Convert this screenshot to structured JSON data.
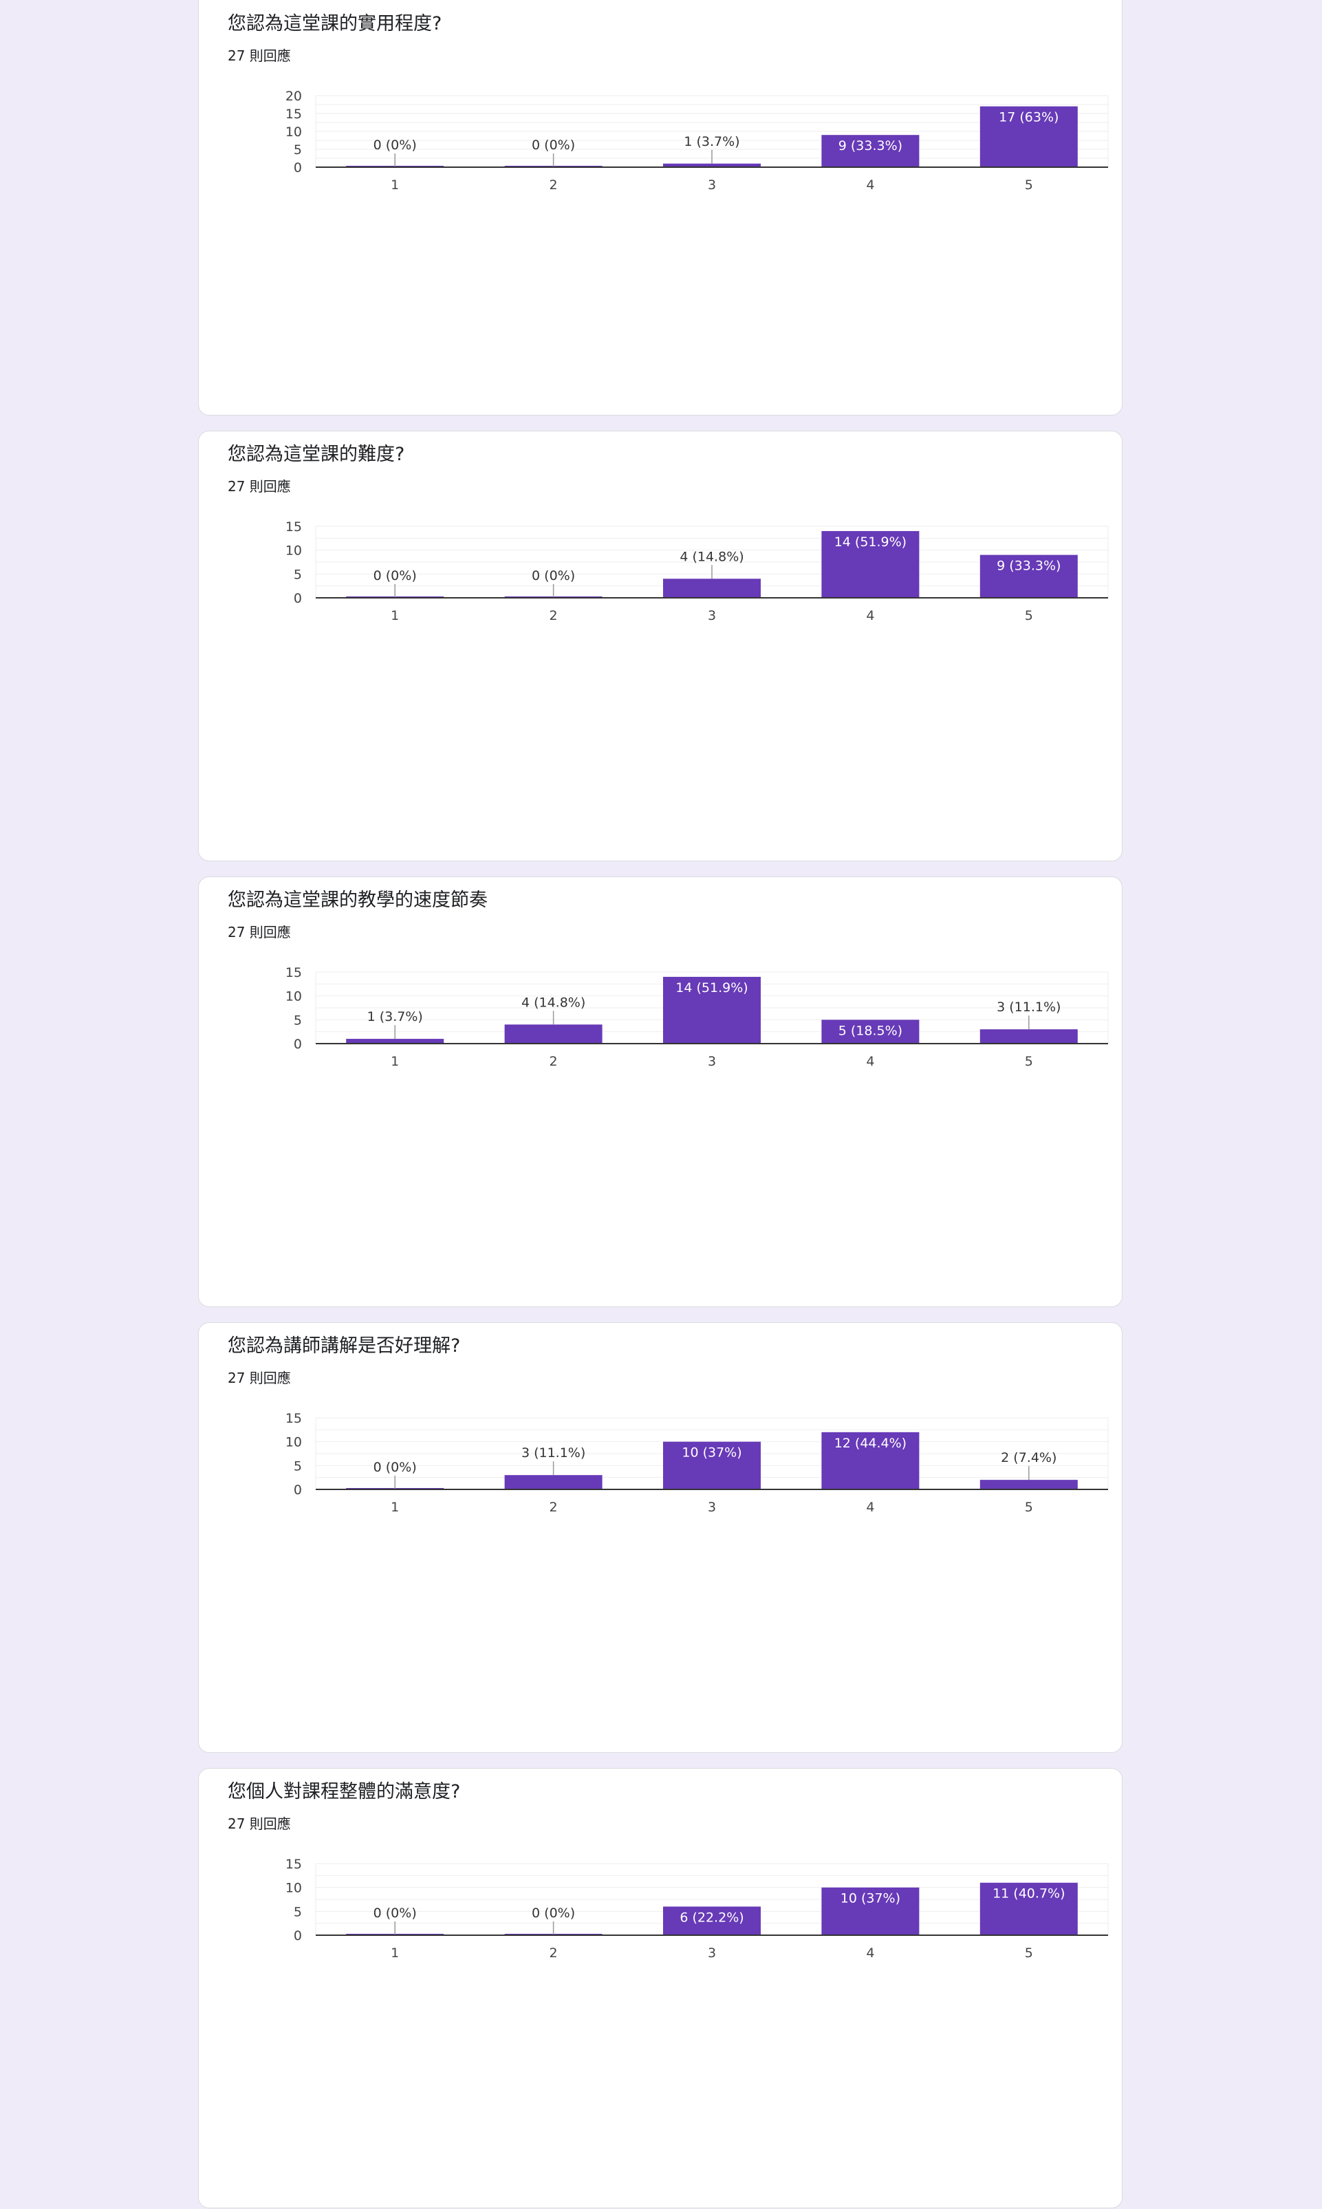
{
  "colors": {
    "bar": "#673ab7",
    "background": "#efebf8",
    "gridline": "#eeeeee",
    "axis": "#333333"
  },
  "chart_data": [
    {
      "type": "bar",
      "title": "您認為這堂課的實用程度?",
      "subtitle": "27 則回應",
      "categories": [
        "1",
        "2",
        "3",
        "4",
        "5"
      ],
      "values": [
        0,
        0,
        1,
        9,
        17
      ],
      "data_labels": [
        "0 (0%)",
        "0 (0%)",
        "1 (3.7%)",
        "9 (33.3%)",
        "17 (63%)"
      ],
      "ylim": [
        0,
        20
      ],
      "yticks": [
        0,
        5,
        10,
        15,
        20
      ],
      "grid": true
    },
    {
      "type": "bar",
      "title": "您認為這堂課的難度?",
      "subtitle": "27 則回應",
      "categories": [
        "1",
        "2",
        "3",
        "4",
        "5"
      ],
      "values": [
        0,
        0,
        4,
        14,
        9
      ],
      "data_labels": [
        "0 (0%)",
        "0 (0%)",
        "4 (14.8%)",
        "14 (51.9%)",
        "9 (33.3%)"
      ],
      "ylim": [
        0,
        15
      ],
      "yticks": [
        0,
        5,
        10,
        15
      ],
      "grid": true
    },
    {
      "type": "bar",
      "title": "您認為這堂課的教學的速度節奏",
      "subtitle": "27 則回應",
      "categories": [
        "1",
        "2",
        "3",
        "4",
        "5"
      ],
      "values": [
        1,
        4,
        14,
        5,
        3
      ],
      "data_labels": [
        "1 (3.7%)",
        "4 (14.8%)",
        "14 (51.9%)",
        "5 (18.5%)",
        "3 (11.1%)"
      ],
      "ylim": [
        0,
        15
      ],
      "yticks": [
        0,
        5,
        10,
        15
      ],
      "grid": true
    },
    {
      "type": "bar",
      "title": "您認為講師講解是否好理解?",
      "subtitle": "27 則回應",
      "categories": [
        "1",
        "2",
        "3",
        "4",
        "5"
      ],
      "values": [
        0,
        3,
        10,
        12,
        2
      ],
      "data_labels": [
        "0 (0%)",
        "3 (11.1%)",
        "10 (37%)",
        "12 (44.4%)",
        "2 (7.4%)"
      ],
      "ylim": [
        0,
        15
      ],
      "yticks": [
        0,
        5,
        10,
        15
      ],
      "grid": true
    },
    {
      "type": "bar",
      "title": "您個人對課程整體的滿意度?",
      "subtitle": "27 則回應",
      "categories": [
        "1",
        "2",
        "3",
        "4",
        "5"
      ],
      "values": [
        0,
        0,
        6,
        10,
        11
      ],
      "data_labels": [
        "0 (0%)",
        "0 (0%)",
        "6 (22.2%)",
        "10 (37%)",
        "11 (40.7%)"
      ],
      "ylim": [
        0,
        15
      ],
      "yticks": [
        0,
        5,
        10,
        15
      ],
      "grid": true
    }
  ]
}
